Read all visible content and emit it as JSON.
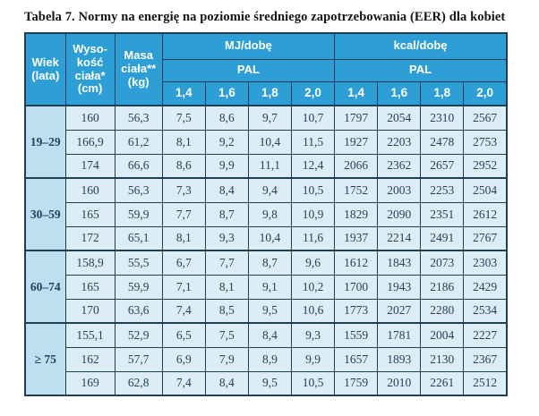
{
  "title": "Tabela 7. Normy na energię na poziomie średniego zapotrzebowania (EER) dla kobiet",
  "table": {
    "headers": {
      "age": "Wiek\n(lata)",
      "height": "Wyso-\nkość\nciała*\n(cm)",
      "mass": "Masa\nciała**\n(kg)",
      "mj": "MJ/dobę",
      "kcal": "kcal/dobę",
      "pal": "PAL",
      "pal_values": [
        "1,4",
        "1,6",
        "1,8",
        "2,0"
      ]
    },
    "groups": [
      {
        "age": "19–29",
        "rows": [
          {
            "height": "160",
            "mass": "56,3",
            "mj": [
              "7,5",
              "8,6",
              "9,7",
              "10,7"
            ],
            "kcal": [
              "1797",
              "2054",
              "2310",
              "2567"
            ]
          },
          {
            "height": "166,9",
            "mass": "61,2",
            "mj": [
              "8,1",
              "9,2",
              "10,4",
              "11,5"
            ],
            "kcal": [
              "1927",
              "2203",
              "2478",
              "2753"
            ]
          },
          {
            "height": "174",
            "mass": "66,6",
            "mj": [
              "8,6",
              "9,9",
              "11,1",
              "12,4"
            ],
            "kcal": [
              "2066",
              "2362",
              "2657",
              "2952"
            ]
          }
        ]
      },
      {
        "age": "30–59",
        "rows": [
          {
            "height": "160",
            "mass": "56,3",
            "mj": [
              "7,3",
              "8,4",
              "9,4",
              "10,5"
            ],
            "kcal": [
              "1752",
              "2003",
              "2253",
              "2504"
            ]
          },
          {
            "height": "165",
            "mass": "59,9",
            "mj": [
              "7,7",
              "8,7",
              "9,8",
              "10,9"
            ],
            "kcal": [
              "1829",
              "2090",
              "2351",
              "2612"
            ]
          },
          {
            "height": "172",
            "mass": "65,1",
            "mj": [
              "8,1",
              "9,3",
              "10,4",
              "11,6"
            ],
            "kcal": [
              "1937",
              "2214",
              "2491",
              "2767"
            ]
          }
        ]
      },
      {
        "age": "60–74",
        "rows": [
          {
            "height": "158,9",
            "mass": "55,5",
            "mj": [
              "6,7",
              "7,7",
              "8,7",
              "9,6"
            ],
            "kcal": [
              "1612",
              "1843",
              "2073",
              "2303"
            ]
          },
          {
            "height": "165",
            "mass": "59,9",
            "mj": [
              "7,1",
              "8,1",
              "9,1",
              "10,2"
            ],
            "kcal": [
              "1700",
              "1943",
              "2186",
              "2429"
            ]
          },
          {
            "height": "170",
            "mass": "63,6",
            "mj": [
              "7,4",
              "8,5",
              "9,5",
              "10,6"
            ],
            "kcal": [
              "1773",
              "2027",
              "2280",
              "2534"
            ]
          }
        ]
      },
      {
        "age": "≥ 75",
        "rows": [
          {
            "height": "155,1",
            "mass": "52,9",
            "mj": [
              "6,5",
              "7,5",
              "8,4",
              "9,3"
            ],
            "kcal": [
              "1559",
              "1781",
              "2004",
              "2227"
            ]
          },
          {
            "height": "162",
            "mass": "57,7",
            "mj": [
              "6,9",
              "7,9",
              "8,9",
              "9,9"
            ],
            "kcal": [
              "1657",
              "1893",
              "2130",
              "2367"
            ]
          },
          {
            "height": "169",
            "mass": "62,8",
            "mj": [
              "7,4",
              "8,4",
              "9,5",
              "10,5"
            ],
            "kcal": [
              "1759",
              "2010",
              "2261",
              "2512"
            ]
          }
        ]
      }
    ]
  },
  "colors": {
    "header_bg": "#2e9fd6",
    "age_cell_bg": "#bedff0",
    "data_cell_bg": "#dcedf6",
    "border": "#1f3e52",
    "header_text": "#ffffff",
    "data_text": "#24425c",
    "title_text": "#151515",
    "page_bg": "#ffffff"
  }
}
